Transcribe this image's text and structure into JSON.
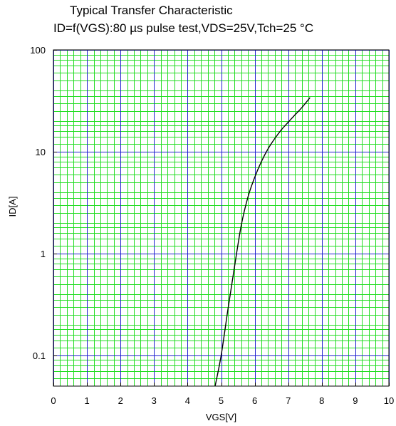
{
  "chart_data": {
    "type": "line",
    "title": "Typical Transfer Characteristic",
    "subtitle": "ID=f(VGS):80 µs pulse test,VDS=25V,Tch=25  °C",
    "xlabel": "VGS[V]",
    "ylabel": "ID[A]",
    "xlim": [
      0,
      10
    ],
    "ylim": [
      0.05,
      100
    ],
    "yscale": "log",
    "grid": true,
    "x_ticks": [
      0,
      1,
      2,
      3,
      4,
      5,
      6,
      7,
      8,
      9,
      10
    ],
    "x_tick_labels": [
      "0",
      "1",
      "2",
      "3",
      "4",
      "5",
      "6",
      "7",
      "8",
      "9",
      "10"
    ],
    "y_ticks": [
      0.1,
      1,
      10,
      100
    ],
    "y_tick_labels": [
      "0.1",
      "1",
      "10",
      "100"
    ],
    "series": [
      {
        "name": "",
        "color": "#000000",
        "x": [
          4.82,
          5.0,
          5.2,
          5.4,
          5.6,
          5.8,
          6.0,
          6.2,
          6.4,
          6.6,
          6.8,
          7.0,
          7.2,
          7.4,
          7.65
        ],
        "y": [
          0.05,
          0.1,
          0.28,
          0.75,
          1.9,
          3.6,
          5.6,
          8.0,
          10.7,
          13.5,
          16.5,
          19.5,
          23.0,
          27.0,
          34.0
        ]
      }
    ],
    "colors": {
      "major_grid": "#2020d0",
      "minor_grid": "#22dd22",
      "frame": "#000000"
    }
  }
}
